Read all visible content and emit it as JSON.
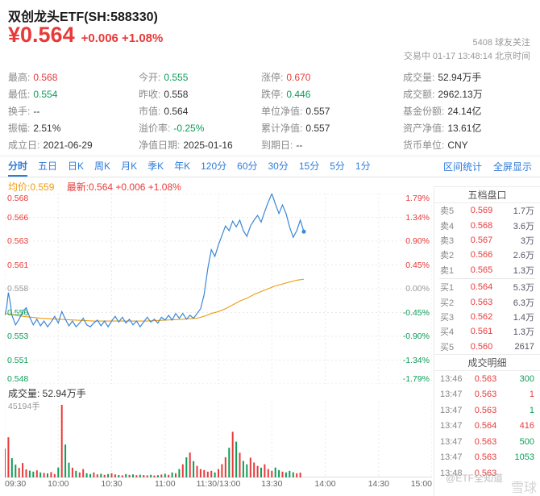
{
  "colors": {
    "up": "#e93a3a",
    "down": "#0e9d58",
    "blue": "#2f7bd9",
    "orange": "#ef9b0f",
    "line": "#3a87d8",
    "grid": "#e9e9e9"
  },
  "header": {
    "title": "双创龙头ETF(SH:588330)",
    "price": "¥0.564",
    "change": "+0.006 +1.08%",
    "followers": "5408 球友关注",
    "status_line": "交易中 01-17 13:48:14 北京时间"
  },
  "stats": {
    "rows": [
      [
        {
          "key": "high",
          "label": "最高:",
          "value": "0.568",
          "tone": "up"
        },
        {
          "key": "open",
          "label": "今开:",
          "value": "0.555",
          "tone": "down"
        },
        {
          "key": "limit-up",
          "label": "涨停:",
          "value": "0.670",
          "tone": "up"
        },
        {
          "key": "volume",
          "label": "成交量:",
          "value": "52.94万手",
          "tone": "text"
        }
      ],
      [
        {
          "key": "low",
          "label": "最低:",
          "value": "0.554",
          "tone": "down"
        },
        {
          "key": "prev-close",
          "label": "昨收:",
          "value": "0.558",
          "tone": "text"
        },
        {
          "key": "limit-down",
          "label": "跌停:",
          "value": "0.446",
          "tone": "down"
        },
        {
          "key": "amount",
          "label": "成交额:",
          "value": "2962.13万",
          "tone": "text"
        }
      ],
      [
        {
          "key": "turnover",
          "label": "换手:",
          "value": "--",
          "tone": "text"
        },
        {
          "key": "market-price",
          "label": "市值:",
          "value": "0.564",
          "tone": "text"
        },
        {
          "key": "unit-nav",
          "label": "单位净值:",
          "value": "0.557",
          "tone": "text"
        },
        {
          "key": "fund-shares",
          "label": "基金份额:",
          "value": "24.14亿",
          "tone": "text"
        }
      ],
      [
        {
          "key": "amplitude",
          "label": "振幅:",
          "value": "2.51%",
          "tone": "text"
        },
        {
          "key": "premium-rate",
          "label": "溢价率:",
          "value": "-0.25%",
          "tone": "down"
        },
        {
          "key": "accum-nav",
          "label": "累计净值:",
          "value": "0.557",
          "tone": "text"
        },
        {
          "key": "net-assets",
          "label": "资产净值:",
          "value": "13.61亿",
          "tone": "text"
        }
      ],
      [
        {
          "key": "inception-date",
          "label": "成立日:",
          "value": "2021-06-29",
          "tone": "text"
        },
        {
          "key": "nav-date",
          "label": "净值日期:",
          "value": "2025-01-16",
          "tone": "text"
        },
        {
          "key": "maturity-date",
          "label": "到期日:",
          "value": "--",
          "tone": "text"
        },
        {
          "key": "currency",
          "label": "货币单位:",
          "value": "CNY",
          "tone": "text"
        }
      ]
    ]
  },
  "tabs": {
    "items": [
      {
        "key": "minute",
        "label": "分时",
        "active": true
      },
      {
        "key": "5day",
        "label": "五日",
        "active": false
      },
      {
        "key": "day-k",
        "label": "日K",
        "active": false
      },
      {
        "key": "week-k",
        "label": "周K",
        "active": false
      },
      {
        "key": "month-k",
        "label": "月K",
        "active": false
      },
      {
        "key": "quarter-k",
        "label": "季K",
        "active": false
      },
      {
        "key": "year-k",
        "label": "年K",
        "active": false
      },
      {
        "key": "120min",
        "label": "120分",
        "active": false
      },
      {
        "key": "60min",
        "label": "60分",
        "active": false
      },
      {
        "key": "30min",
        "label": "30分",
        "active": false
      },
      {
        "key": "15min",
        "label": "15分",
        "active": false
      },
      {
        "key": "5min",
        "label": "5分",
        "active": false
      },
      {
        "key": "1min",
        "label": "1分",
        "active": false
      }
    ],
    "right": [
      {
        "key": "range-stats",
        "label": "区间统计"
      },
      {
        "key": "fullscreen",
        "label": "全屏显示"
      }
    ]
  },
  "chart": {
    "legend_avg": "均价:0.559",
    "legend_latest": "最新:0.564 +0.006 +1.08%",
    "volume_title": "成交量: 52.94万手",
    "volume_max_label": "45194手",
    "y_axis": [
      {
        "price": "0.568",
        "pct": "1.79%",
        "tone": "up"
      },
      {
        "price": "0.566",
        "pct": "1.34%",
        "tone": "up"
      },
      {
        "price": "0.563",
        "pct": "0.90%",
        "tone": "up"
      },
      {
        "price": "0.561",
        "pct": "0.45%",
        "tone": "up"
      },
      {
        "price": "0.558",
        "pct": "0.00%",
        "tone": "flat"
      },
      {
        "price": "0.556",
        "pct": "-0.45%",
        "tone": "down"
      },
      {
        "price": "0.553",
        "pct": "-0.90%",
        "tone": "down"
      },
      {
        "price": "0.551",
        "pct": "-1.34%",
        "tone": "down"
      },
      {
        "price": "0.548",
        "pct": "-1.79%",
        "tone": "down"
      }
    ]
  },
  "chart_data": {
    "type": "line",
    "title": "分时图 (intraday price + volume)",
    "x_total_minutes": 240,
    "session_break_fraction": 0.5,
    "ylim": [
      0.548,
      0.568
    ],
    "prev_close": 0.558,
    "x_tick_labels": [
      "09:30",
      "10:00",
      "10:30",
      "11:00",
      "11:30/13:00",
      "13:30",
      "14:00",
      "14:30",
      "15:00"
    ],
    "price_points": [
      [
        0,
        0.5552
      ],
      [
        1,
        0.556
      ],
      [
        2,
        0.5576
      ],
      [
        3,
        0.5566
      ],
      [
        4,
        0.5552
      ],
      [
        6,
        0.5542
      ],
      [
        8,
        0.5548
      ],
      [
        10,
        0.5556
      ],
      [
        12,
        0.556
      ],
      [
        14,
        0.555
      ],
      [
        16,
        0.5542
      ],
      [
        18,
        0.5548
      ],
      [
        20,
        0.5541
      ],
      [
        22,
        0.5546
      ],
      [
        24,
        0.554
      ],
      [
        26,
        0.5545
      ],
      [
        28,
        0.5551
      ],
      [
        30,
        0.5544
      ],
      [
        32,
        0.5556
      ],
      [
        34,
        0.5548
      ],
      [
        36,
        0.5541
      ],
      [
        38,
        0.5546
      ],
      [
        40,
        0.554
      ],
      [
        42,
        0.5544
      ],
      [
        44,
        0.5549
      ],
      [
        46,
        0.5542
      ],
      [
        48,
        0.554
      ],
      [
        50,
        0.5544
      ],
      [
        52,
        0.5547
      ],
      [
        54,
        0.5541
      ],
      [
        56,
        0.5546
      ],
      [
        58,
        0.554
      ],
      [
        60,
        0.5546
      ],
      [
        62,
        0.5551
      ],
      [
        64,
        0.5545
      ],
      [
        66,
        0.555
      ],
      [
        68,
        0.5544
      ],
      [
        70,
        0.5548
      ],
      [
        72,
        0.5542
      ],
      [
        74,
        0.5546
      ],
      [
        76,
        0.554
      ],
      [
        78,
        0.5545
      ],
      [
        80,
        0.555
      ],
      [
        82,
        0.5545
      ],
      [
        84,
        0.5548
      ],
      [
        86,
        0.5544
      ],
      [
        88,
        0.555
      ],
      [
        90,
        0.5547
      ],
      [
        92,
        0.5552
      ],
      [
        94,
        0.5547
      ],
      [
        96,
        0.5554
      ],
      [
        98,
        0.5549
      ],
      [
        100,
        0.5554
      ],
      [
        102,
        0.5548
      ],
      [
        104,
        0.5552
      ],
      [
        106,
        0.5549
      ],
      [
        108,
        0.5554
      ],
      [
        110,
        0.5559
      ],
      [
        112,
        0.5574
      ],
      [
        114,
        0.5601
      ],
      [
        116,
        0.5621
      ],
      [
        118,
        0.5614
      ],
      [
        120,
        0.5626
      ],
      [
        122,
        0.5636
      ],
      [
        124,
        0.5646
      ],
      [
        126,
        0.5641
      ],
      [
        128,
        0.5651
      ],
      [
        130,
        0.5645
      ],
      [
        132,
        0.5652
      ],
      [
        134,
        0.5641
      ],
      [
        136,
        0.5635
      ],
      [
        138,
        0.5646
      ],
      [
        140,
        0.5652
      ],
      [
        142,
        0.5657
      ],
      [
        144,
        0.565
      ],
      [
        146,
        0.5661
      ],
      [
        148,
        0.5671
      ],
      [
        150,
        0.568
      ],
      [
        152,
        0.5669
      ],
      [
        154,
        0.5659
      ],
      [
        156,
        0.5668
      ],
      [
        158,
        0.5659
      ],
      [
        160,
        0.5645
      ],
      [
        162,
        0.5634
      ],
      [
        164,
        0.5641
      ],
      [
        166,
        0.5652
      ],
      [
        168,
        0.564
      ]
    ],
    "avg_points": [
      [
        0,
        0.5554
      ],
      [
        10,
        0.5551
      ],
      [
        20,
        0.5549
      ],
      [
        30,
        0.5548
      ],
      [
        40,
        0.5547
      ],
      [
        50,
        0.5546
      ],
      [
        60,
        0.5546
      ],
      [
        70,
        0.5546
      ],
      [
        80,
        0.5546
      ],
      [
        90,
        0.5547
      ],
      [
        100,
        0.5548
      ],
      [
        108,
        0.5549
      ],
      [
        112,
        0.5551
      ],
      [
        116,
        0.5554
      ],
      [
        120,
        0.5556
      ],
      [
        124,
        0.5559
      ],
      [
        128,
        0.5563
      ],
      [
        132,
        0.5567
      ],
      [
        136,
        0.557
      ],
      [
        140,
        0.5574
      ],
      [
        144,
        0.5577
      ],
      [
        148,
        0.558
      ],
      [
        152,
        0.5583
      ],
      [
        156,
        0.5585
      ],
      [
        160,
        0.5587
      ],
      [
        164,
        0.5589
      ],
      [
        168,
        0.559
      ]
    ],
    "volume_bucket_minutes": 2,
    "volume_max": 45194,
    "volumes": [
      18000,
      25000,
      12000,
      8000,
      6000,
      9000,
      5000,
      4200,
      3600,
      4400,
      3100,
      2800,
      2500,
      3300,
      2100,
      6200,
      45194,
      20500,
      9200,
      6100,
      4100,
      3100,
      5200,
      2600,
      2100,
      3100,
      1900,
      2300,
      1600,
      2100,
      2600,
      1900,
      1500,
      1300,
      2100,
      1600,
      1900,
      1400,
      1700,
      1500,
      1300,
      1600,
      1200,
      1400,
      1800,
      2300,
      1600,
      3100,
      2600,
      5200,
      8200,
      12500,
      15500,
      10200,
      7200,
      5200,
      4600,
      3600,
      4100,
      3100,
      5200,
      8300,
      12600,
      18500,
      28400,
      22300,
      15400,
      10300,
      8200,
      12300,
      9300,
      7200,
      6100,
      8200,
      5200,
      4100,
      6200,
      4600,
      3600,
      3100,
      4100,
      3200,
      2600,
      3000
    ]
  },
  "order_book": {
    "title": "五档盘口",
    "asks": [
      {
        "level": "卖5",
        "price": "0.569",
        "vol": "1.7万"
      },
      {
        "level": "卖4",
        "price": "0.568",
        "vol": "3.6万"
      },
      {
        "level": "卖3",
        "price": "0.567",
        "vol": "3万"
      },
      {
        "level": "卖2",
        "price": "0.566",
        "vol": "2.6万"
      },
      {
        "level": "卖1",
        "price": "0.565",
        "vol": "1.3万"
      }
    ],
    "bids": [
      {
        "level": "买1",
        "price": "0.564",
        "vol": "5.3万"
      },
      {
        "level": "买2",
        "price": "0.563",
        "vol": "6.3万"
      },
      {
        "level": "买3",
        "price": "0.562",
        "vol": "1.4万"
      },
      {
        "level": "买4",
        "price": "0.561",
        "vol": "1.3万"
      },
      {
        "level": "买5",
        "price": "0.560",
        "vol": "2617"
      }
    ]
  },
  "trades": {
    "title": "成交明细",
    "rows": [
      {
        "time": "13:46",
        "price": "0.563",
        "vol": "300",
        "tone": "down"
      },
      {
        "time": "13:47",
        "price": "0.563",
        "vol": "1",
        "tone": "up"
      },
      {
        "time": "13:47",
        "price": "0.563",
        "vol": "1",
        "tone": "down"
      },
      {
        "time": "13:47",
        "price": "0.564",
        "vol": "416",
        "tone": "up"
      },
      {
        "time": "13:47",
        "price": "0.563",
        "vol": "500",
        "tone": "down"
      },
      {
        "time": "13:47",
        "price": "0.563",
        "vol": "1053",
        "tone": "down"
      },
      {
        "time": "13:48",
        "price": "0.563",
        "vol": "",
        "tone": "up"
      }
    ]
  },
  "watermarks": {
    "primary": "@ETF全知道",
    "secondary": "雪球"
  }
}
